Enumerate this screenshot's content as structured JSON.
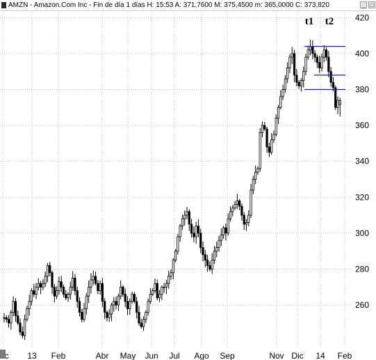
{
  "window": {
    "title": "AMZN - Amazon.Com Inc - Fin de día 1 días  H: 15:53  A: 371,7600  M: 375,4500  m: 365,0000  C: 373,820",
    "minimize_label": "_",
    "maximize_label": "□"
  },
  "chart_data": {
    "type": "candlestick",
    "title": "AMZN - Amazon.Com Inc - Fin de día 1 días",
    "ylim": [
      236,
      424
    ],
    "y_ticks": [
      260,
      280,
      300,
      320,
      340,
      360,
      380,
      400,
      420
    ],
    "x_ticks": [
      "Dic",
      "13",
      "Feb",
      "Abr",
      "May",
      "Jun",
      "Jul",
      "Ago",
      "Sep",
      "Nov",
      "Dic",
      "14",
      "Feb"
    ],
    "grid": true,
    "annotations": [
      {
        "text": "t1",
        "x": "Dic",
        "y": 405
      },
      {
        "text": "t2",
        "x": "Ene",
        "y": 405
      }
    ],
    "horizontal_lines": [
      {
        "y": 404,
        "from": "Dic",
        "to": "Feb"
      },
      {
        "y": 388,
        "from": "Dic",
        "to": "Feb"
      },
      {
        "y": 380,
        "from": "Dic",
        "to": "Feb"
      }
    ],
    "series": [
      {
        "values": [
          253,
          252,
          250,
          256,
          262,
          254,
          250,
          245,
          243,
          252,
          258,
          262,
          268,
          266,
          270,
          272,
          270,
          272,
          276,
          282,
          278,
          270,
          265,
          268,
          273,
          270,
          266,
          264,
          266,
          270,
          275,
          268,
          262,
          256,
          252,
          258,
          265,
          270,
          274,
          276,
          272,
          268,
          272,
          262,
          256,
          253,
          255,
          260,
          262,
          260,
          265,
          270,
          266,
          262,
          258,
          262,
          266,
          262,
          256,
          250,
          248,
          252,
          256,
          262,
          266,
          268,
          272,
          264,
          266,
          270,
          270,
          272,
          276,
          278,
          285,
          290,
          298,
          304,
          308,
          310,
          312,
          305,
          300,
          298,
          304,
          300,
          292,
          288,
          285,
          282,
          280,
          285,
          290,
          292,
          296,
          299,
          303,
          300,
          308,
          312,
          314,
          316,
          318,
          315,
          310,
          305,
          306,
          310,
          324,
          330,
          334,
          336,
          356,
          360,
          358,
          348,
          345,
          352,
          355,
          364,
          370,
          376,
          380,
          386,
          392,
          398,
          400,
          388,
          384,
          382,
          385,
          390,
          398,
          402,
          404,
          400,
          398,
          395,
          392,
          398,
          402,
          398,
          390,
          384,
          381,
          370,
          374
        ]
      }
    ],
    "last_bar": {
      "open": 371.76,
      "high": 375.45,
      "low": 365.0,
      "close": 373.82
    }
  }
}
